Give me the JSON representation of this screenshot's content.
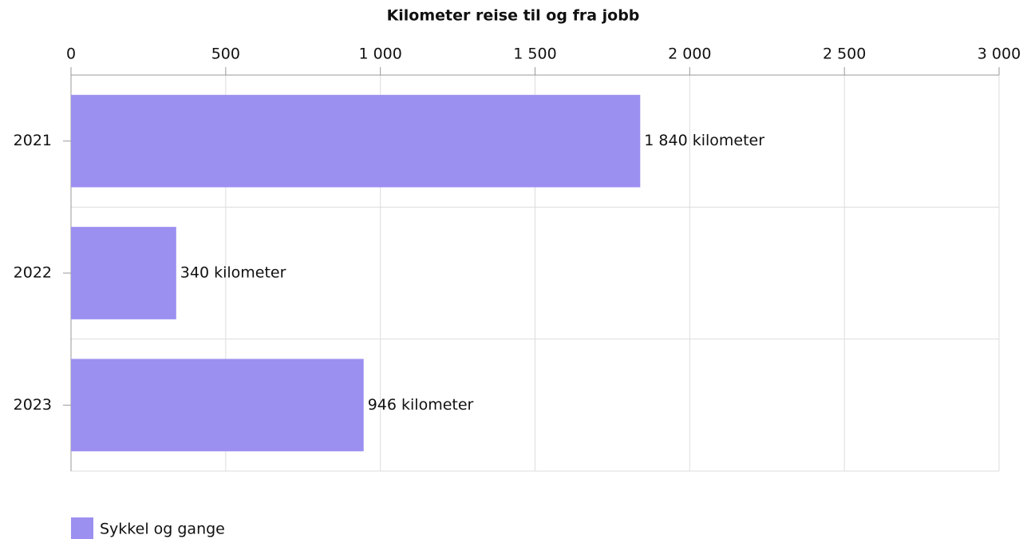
{
  "chart_data": {
    "type": "bar",
    "orientation": "horizontal",
    "title": "Kilometer reise til og fra jobb",
    "categories": [
      "2021",
      "2022",
      "2023"
    ],
    "series": [
      {
        "name": "Sykkel og gange",
        "color": "#9b90f0",
        "values": [
          1840,
          340,
          946
        ],
        "value_labels": [
          "1 840 kilometer",
          "340 kilometer",
          "946 kilometer"
        ]
      }
    ],
    "xlim": [
      0,
      3000
    ],
    "xticks": [
      0,
      500,
      {
        "value": 1000,
        "label": "1 000"
      },
      {
        "value": 1500,
        "label": "1 500"
      },
      {
        "value": 2000,
        "label": "2 000"
      },
      {
        "value": 2500,
        "label": "2 500"
      },
      {
        "value": 3000,
        "label": "3 000"
      }
    ],
    "grid": true,
    "legend": "bottom-left"
  }
}
